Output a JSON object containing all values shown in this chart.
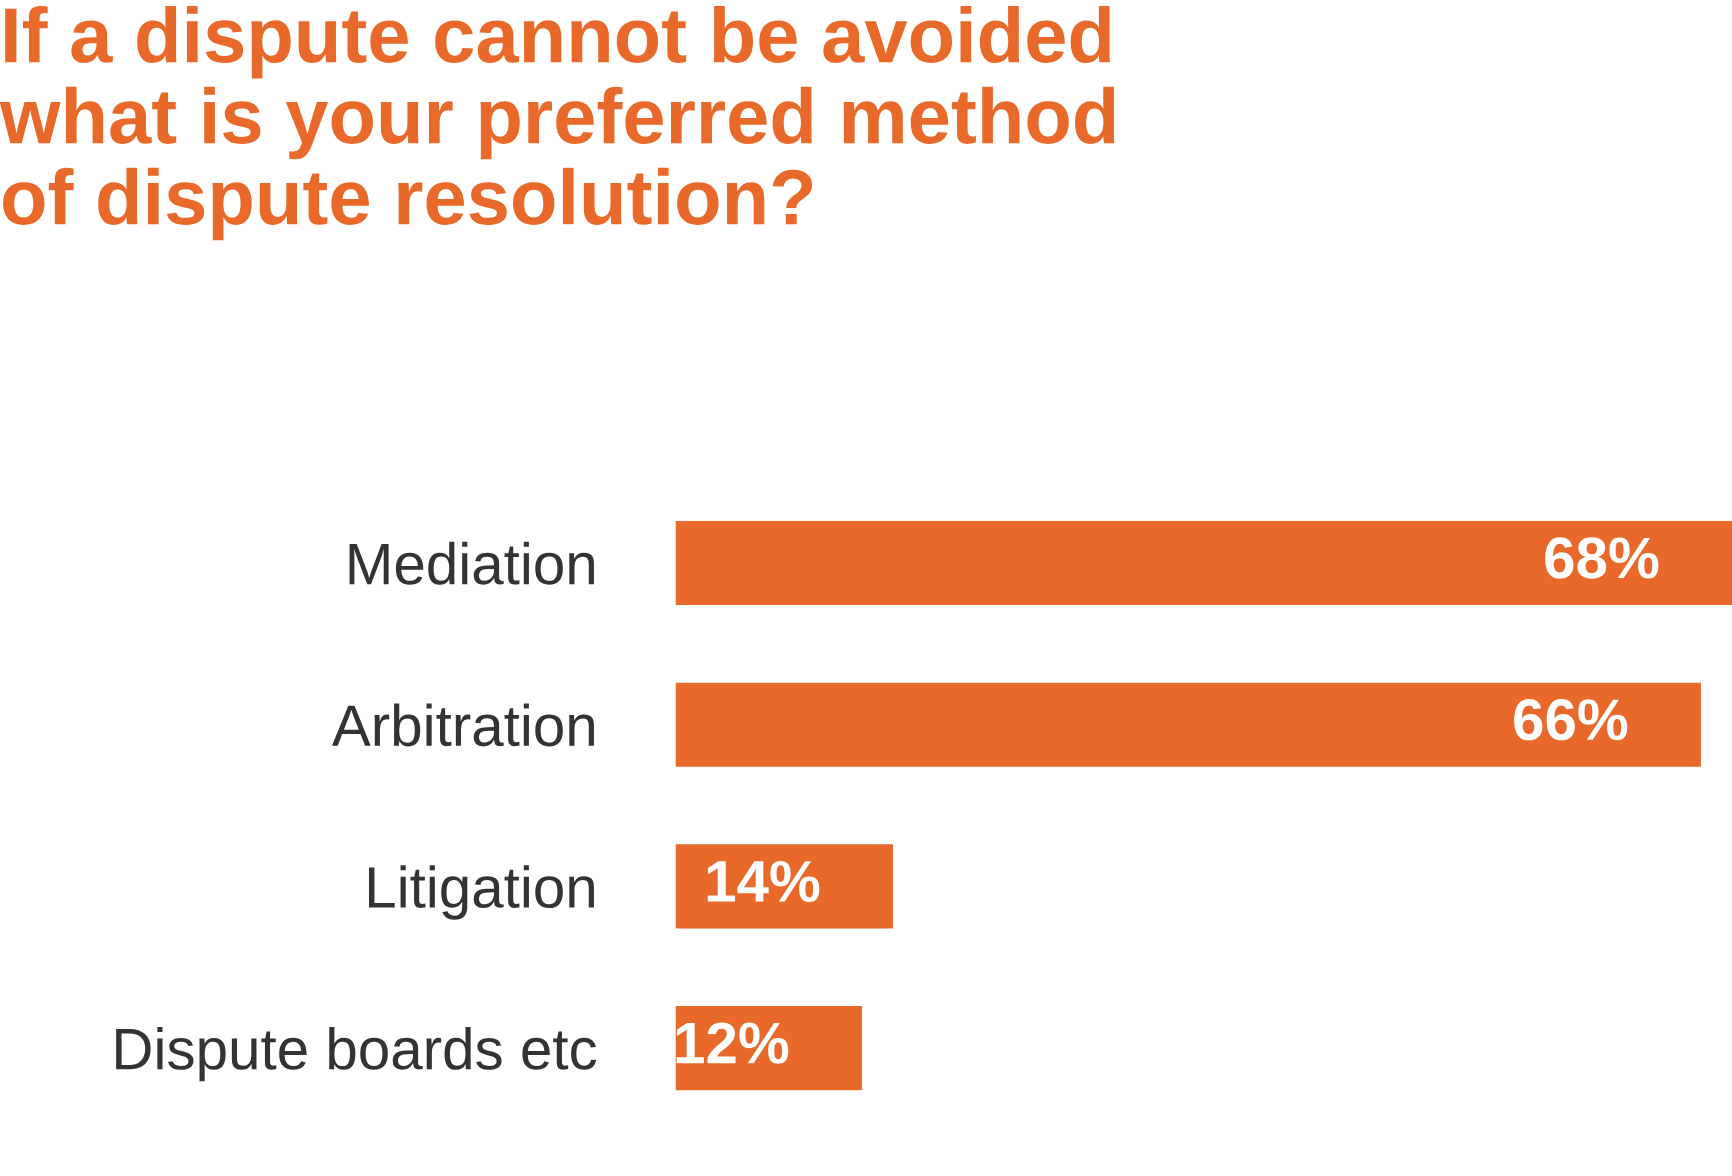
{
  "chart_data": {
    "type": "bar",
    "orientation": "horizontal",
    "title": "If a dispute cannot be avoided\nwhat is your preferred method\nof dispute resolution?",
    "categories": [
      "Mediation",
      "Arbitration",
      "Litigation",
      "Dispute boards etc"
    ],
    "values": [
      68,
      66,
      14,
      12
    ],
    "value_labels": [
      "68%",
      "66%",
      "14%",
      "12%"
    ],
    "color": "#e8692a",
    "grid": false,
    "legend": false
  }
}
